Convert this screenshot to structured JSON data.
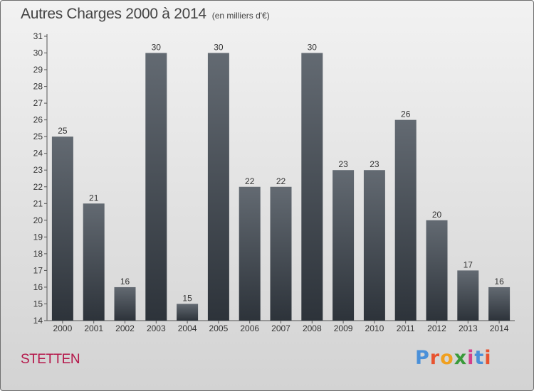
{
  "title": "Autres Charges 2000 à 2014",
  "subtitle": "(en milliers d'€)",
  "commune": "STETTEN",
  "brand": {
    "text": "Proxiti",
    "letter_colors": [
      "#4a90d9",
      "#e8532f",
      "#f0a020",
      "#3a9a3a",
      "#d43f8a",
      "#4a90d9",
      "#e8532f"
    ]
  },
  "colors": {
    "bar_top": "#636a72",
    "bar_bottom": "#2d333a",
    "label_text": "#333333",
    "commune_text": "#b5174a"
  },
  "chart_data": {
    "type": "bar",
    "title": "Autres Charges 2000 à 2014",
    "subtitle": "(en milliers d'€)",
    "categories": [
      "2000",
      "2001",
      "2002",
      "2003",
      "2004",
      "2005",
      "2006",
      "2007",
      "2008",
      "2009",
      "2010",
      "2011",
      "2012",
      "2013",
      "2014"
    ],
    "values": [
      25,
      21,
      16,
      30,
      15,
      30,
      22,
      22,
      30,
      23,
      23,
      26,
      20,
      17,
      16
    ],
    "ylim": [
      14,
      31
    ],
    "yticks": [
      14,
      15,
      16,
      17,
      18,
      19,
      20,
      21,
      22,
      23,
      24,
      25,
      26,
      27,
      28,
      29,
      30,
      31
    ],
    "xlabel": "",
    "ylabel": "",
    "grid": false,
    "data_labels": true
  }
}
